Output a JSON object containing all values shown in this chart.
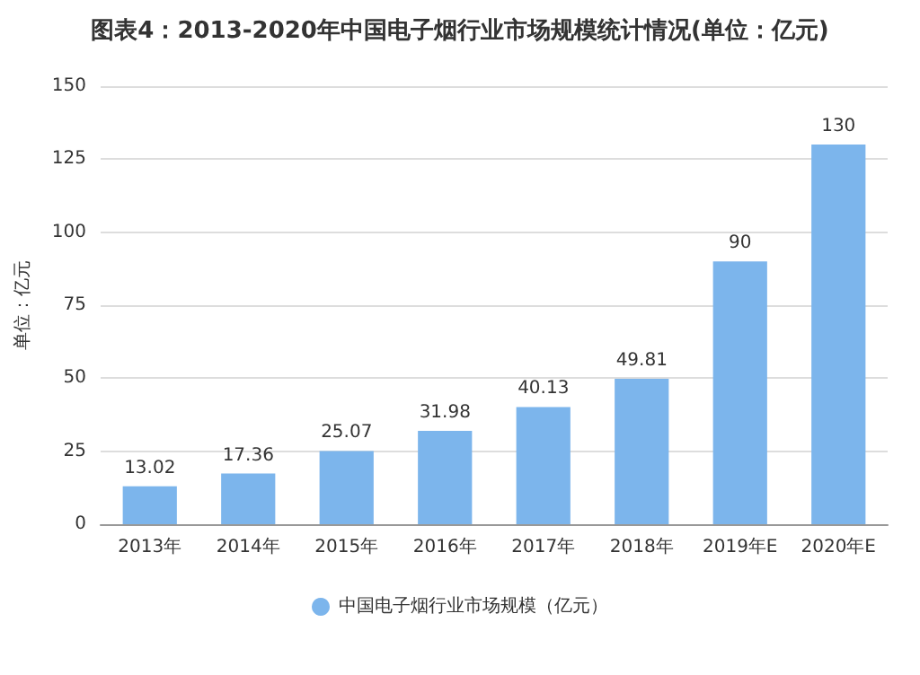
{
  "chart_data": {
    "type": "bar",
    "title": "图表4：2013-2020年中国电子烟行业市场规模统计情况(单位：亿元)",
    "categories": [
      "2013年",
      "2014年",
      "2015年",
      "2016年",
      "2017年",
      "2018年",
      "2019年E",
      "2020年E"
    ],
    "series": [
      {
        "name": "中国电子烟行业市场规模（亿元）",
        "color": "#7cb5ec",
        "values": [
          13.02,
          17.36,
          25.07,
          31.98,
          40.13,
          49.81,
          90,
          130
        ]
      }
    ],
    "ylabel": "单位：亿元",
    "ylim": [
      0,
      150
    ],
    "yticks": [
      0,
      25,
      50,
      75,
      100,
      125,
      150
    ],
    "grid": "y",
    "legend": "bottom",
    "data_labels": true
  }
}
